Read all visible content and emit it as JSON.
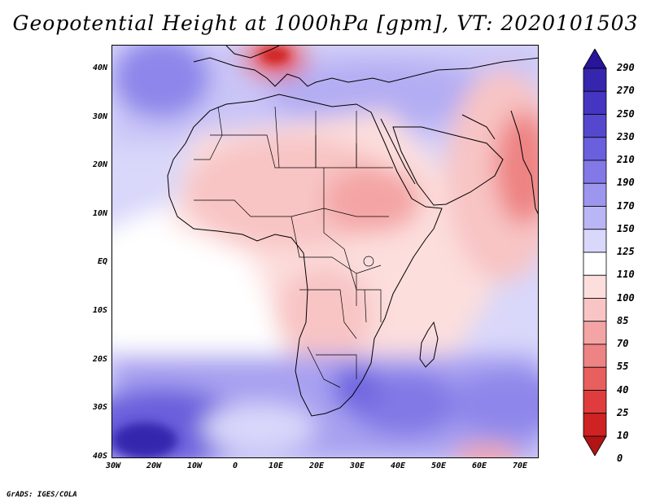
{
  "title": "Geopotential Height at 1000hPa [gpm], VT: 2020101503",
  "credit": "GrADS: IGES/COLA",
  "y_labels": [
    "40N",
    "30N",
    "20N",
    "10N",
    "EQ",
    "10S",
    "20S",
    "30S",
    "40S"
  ],
  "x_labels": [
    "30W",
    "20W",
    "10W",
    "0",
    "10E",
    "20E",
    "30E",
    "40E",
    "50E",
    "60E",
    "70E"
  ],
  "colorbar": {
    "labels": [
      "290",
      "270",
      "250",
      "230",
      "210",
      "190",
      "170",
      "150",
      "125",
      "110",
      "100",
      "85",
      "70",
      "55",
      "40",
      "25",
      "10",
      "0"
    ],
    "colors": [
      "#28159a",
      "#3626ae",
      "#4535c1",
      "#5548ce",
      "#6a5fdc",
      "#8278e6",
      "#9d96ee",
      "#bab5f4",
      "#d9d7fa",
      "#ffffff",
      "#fcdedd",
      "#f8c4c4",
      "#f4a4a4",
      "#ee8383",
      "#e85f5f",
      "#df3d3d",
      "#cf2222",
      "#b11414"
    ]
  },
  "map": {
    "extent": {
      "lon_min": -30,
      "lon_max": 75,
      "lat_min": -40,
      "lat_max": 45
    },
    "ocean_color": "#ffffff",
    "coast_color": "#000000"
  }
}
